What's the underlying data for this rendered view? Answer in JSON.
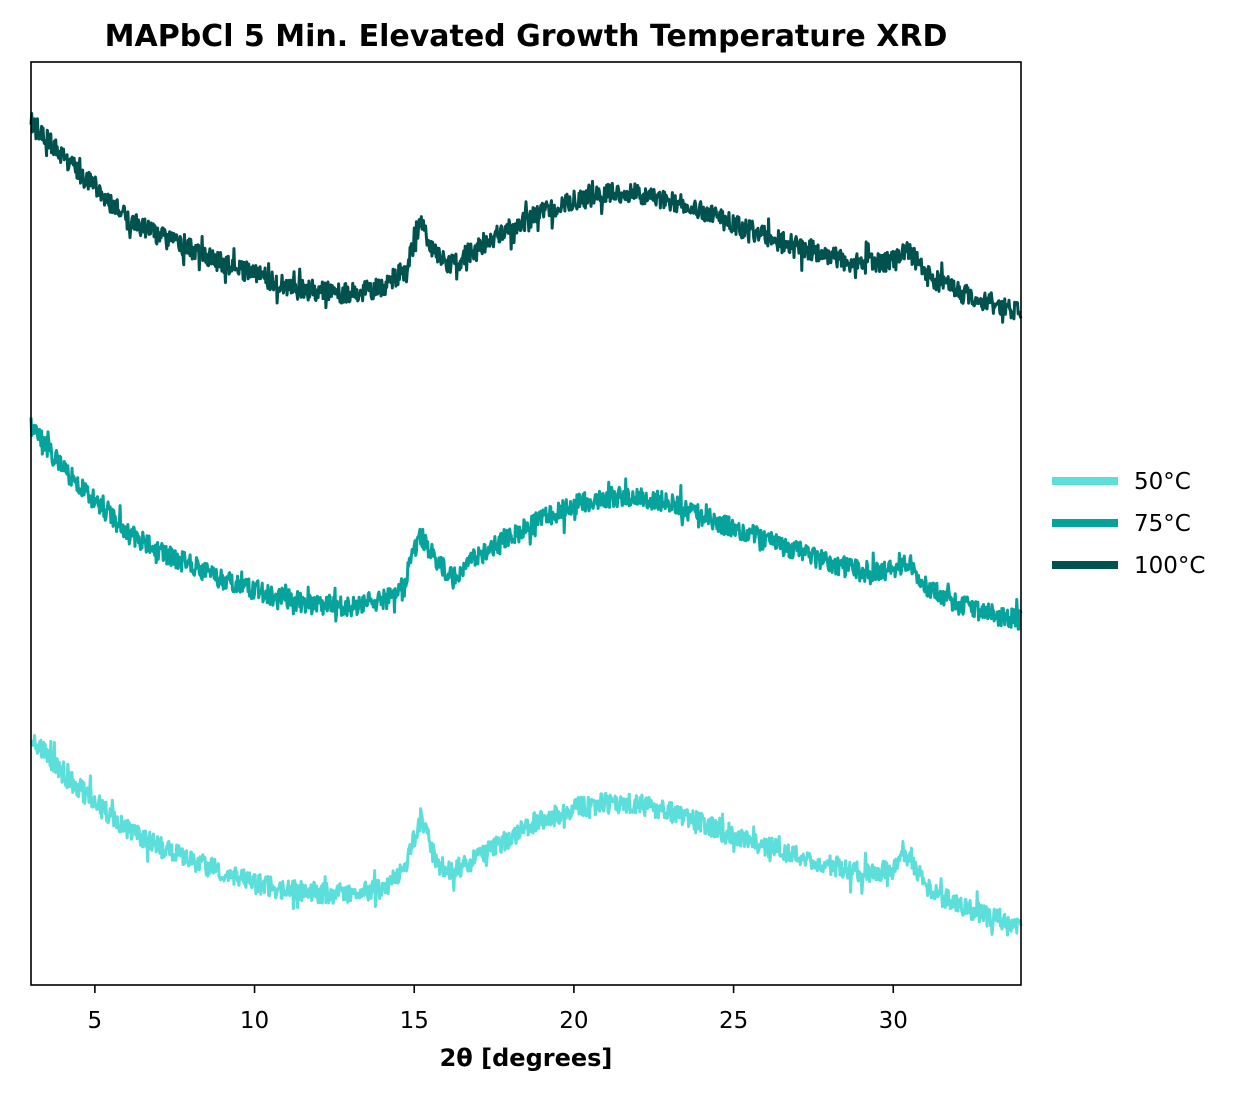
{
  "chart_data": {
    "type": "line",
    "title": "MAPbCl 5 Min. Elevated Growth Temperature XRD",
    "xlabel": "2θ [degrees]",
    "ylabel": "",
    "xlim": [
      3,
      34
    ],
    "ylim": [
      0,
      1
    ],
    "xticks": [
      5,
      10,
      15,
      20,
      25,
      30
    ],
    "xtick_labels": [
      "5",
      "10",
      "15",
      "20",
      "25",
      "30"
    ],
    "yticks_shown": false,
    "grid": false,
    "legend_position": "outside-right",
    "series": [
      {
        "name": "50°C",
        "color": "#5cdedb",
        "x": [
          3,
          4,
          5,
          6,
          7,
          8,
          9,
          10,
          11,
          12,
          13,
          14,
          14.7,
          15.2,
          15.7,
          16.2,
          17,
          18,
          19,
          20,
          21,
          22,
          23,
          24,
          25,
          26,
          27,
          28,
          29,
          30,
          30.5,
          31,
          32,
          33,
          34
        ],
        "y": [
          0.27,
          0.228,
          0.198,
          0.168,
          0.15,
          0.135,
          0.122,
          0.11,
          0.103,
          0.1,
          0.099,
          0.104,
          0.125,
          0.183,
          0.132,
          0.124,
          0.138,
          0.16,
          0.178,
          0.192,
          0.197,
          0.196,
          0.188,
          0.176,
          0.163,
          0.151,
          0.14,
          0.13,
          0.122,
          0.125,
          0.142,
          0.106,
          0.087,
          0.074,
          0.066
        ]
      },
      {
        "name": "75°C",
        "color": "#06a39d",
        "x": [
          3,
          4,
          5,
          6,
          7,
          8,
          9,
          10,
          11,
          12,
          13,
          14,
          14.7,
          15.2,
          15.7,
          16.2,
          17,
          18,
          19,
          20,
          21,
          22,
          23,
          24,
          25,
          26,
          27,
          28,
          29,
          30,
          30.5,
          31,
          32,
          33,
          34
        ],
        "y": [
          0.605,
          0.56,
          0.525,
          0.49,
          0.47,
          0.455,
          0.44,
          0.428,
          0.418,
          0.412,
          0.41,
          0.418,
          0.438,
          0.488,
          0.46,
          0.44,
          0.465,
          0.485,
          0.505,
          0.52,
          0.528,
          0.53,
          0.522,
          0.508,
          0.495,
          0.482,
          0.47,
          0.458,
          0.448,
          0.45,
          0.46,
          0.432,
          0.413,
          0.402,
          0.395
        ]
      },
      {
        "name": "100°C",
        "color": "#00524f",
        "x": [
          3,
          4,
          5,
          6,
          7,
          8,
          9,
          10,
          11,
          12,
          13,
          14,
          14.7,
          15.2,
          15.7,
          16.2,
          17,
          18,
          19,
          20,
          21,
          22,
          23,
          24,
          25,
          26,
          27,
          28,
          29,
          30,
          30.5,
          31,
          32,
          33,
          34
        ],
        "y": [
          0.935,
          0.898,
          0.863,
          0.83,
          0.812,
          0.797,
          0.782,
          0.77,
          0.758,
          0.752,
          0.75,
          0.756,
          0.775,
          0.825,
          0.79,
          0.78,
          0.8,
          0.82,
          0.838,
          0.85,
          0.858,
          0.858,
          0.85,
          0.838,
          0.825,
          0.811,
          0.8,
          0.79,
          0.78,
          0.785,
          0.795,
          0.77,
          0.752,
          0.74,
          0.728
        ]
      }
    ]
  }
}
